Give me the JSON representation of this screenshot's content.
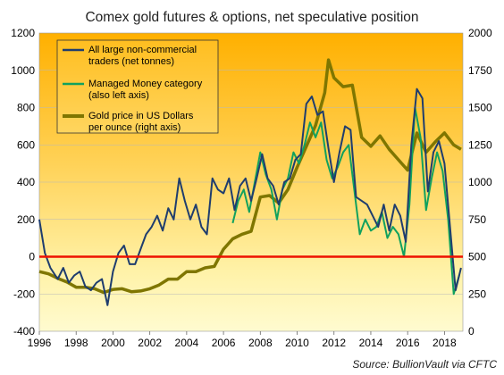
{
  "chart_data": {
    "type": "line",
    "title": "Comex gold futures & options, net speculative position",
    "source": "Source: BullionVault via CFTC",
    "x_axis": {
      "range": [
        1996,
        2019
      ],
      "ticks": [
        "1996",
        "1998",
        "2000",
        "2002",
        "2004",
        "2006",
        "2008",
        "2010",
        "2012",
        "2014",
        "2016",
        "2018"
      ]
    },
    "y_left": {
      "range": [
        -400,
        1200
      ],
      "ticks": [
        "-400",
        "-200",
        "0",
        "200",
        "400",
        "600",
        "800",
        "1000",
        "1200"
      ],
      "unit": "net tonnes"
    },
    "y_right": {
      "range": [
        0,
        2000
      ],
      "ticks": [
        "0",
        "250",
        "500",
        "750",
        "1000",
        "1250",
        "1500",
        "1750",
        "2000"
      ],
      "unit": "US Dollars per ounce"
    },
    "reference_line": {
      "y": 0,
      "axis": "left",
      "color": "#ee1100"
    },
    "grid": {
      "horizontal": true,
      "vertical": false
    },
    "legend_position": "top-left",
    "series": [
      {
        "name": "All large non-commercial traders (net tonnes)",
        "legend_lines": [
          "All large non-commercial",
          "traders (net tonnes)"
        ],
        "axis": "left",
        "color": "#1f3d6e",
        "x": [
          1996.0,
          1996.3,
          1996.6,
          1997.0,
          1997.3,
          1997.6,
          1997.9,
          1998.2,
          1998.5,
          1998.8,
          1999.1,
          1999.4,
          1999.7,
          2000.0,
          2000.3,
          2000.6,
          2000.9,
          2001.2,
          2001.5,
          2001.8,
          2002.1,
          2002.4,
          2002.7,
          2003.0,
          2003.3,
          2003.6,
          2003.9,
          2004.2,
          2004.5,
          2004.8,
          2005.1,
          2005.4,
          2005.7,
          2006.0,
          2006.3,
          2006.6,
          2006.9,
          2007.2,
          2007.5,
          2007.8,
          2008.1,
          2008.4,
          2008.7,
          2009.0,
          2009.3,
          2009.6,
          2009.9,
          2010.2,
          2010.5,
          2010.8,
          2011.1,
          2011.4,
          2011.7,
          2012.0,
          2012.3,
          2012.6,
          2012.9,
          2013.2,
          2013.5,
          2013.8,
          2014.1,
          2014.4,
          2014.7,
          2015.0,
          2015.3,
          2015.6,
          2015.9,
          2016.2,
          2016.5,
          2016.8,
          2017.1,
          2017.4,
          2017.7,
          2018.0,
          2018.3,
          2018.6,
          2018.9
        ],
        "values": [
          200,
          20,
          -60,
          -120,
          -60,
          -140,
          -100,
          -80,
          -160,
          -180,
          -140,
          -120,
          -260,
          -80,
          20,
          60,
          -40,
          -40,
          40,
          120,
          160,
          220,
          140,
          260,
          200,
          420,
          300,
          200,
          280,
          160,
          120,
          420,
          360,
          340,
          420,
          250,
          380,
          420,
          300,
          420,
          550,
          420,
          380,
          280,
          400,
          420,
          520,
          550,
          820,
          860,
          760,
          780,
          580,
          400,
          560,
          700,
          680,
          320,
          300,
          280,
          220,
          160,
          280,
          140,
          280,
          220,
          80,
          600,
          900,
          850,
          350,
          560,
          620,
          500,
          160,
          -180,
          -60
        ]
      },
      {
        "name": "Managed Money category (also left axis)",
        "legend_lines": [
          "Managed Money category",
          "(also left axis)"
        ],
        "axis": "left",
        "color": "#11a15e",
        "x": [
          2006.5,
          2006.8,
          2007.1,
          2007.4,
          2007.7,
          2008.0,
          2008.3,
          2008.6,
          2008.9,
          2009.2,
          2009.5,
          2009.8,
          2010.1,
          2010.4,
          2010.7,
          2011.0,
          2011.3,
          2011.6,
          2011.9,
          2012.2,
          2012.5,
          2012.8,
          2013.1,
          2013.4,
          2013.7,
          2014.0,
          2014.3,
          2014.6,
          2014.9,
          2015.2,
          2015.5,
          2015.8,
          2016.1,
          2016.4,
          2016.7,
          2017.0,
          2017.3,
          2017.6,
          2017.9,
          2018.2,
          2018.5,
          2018.8
        ],
        "values": [
          180,
          300,
          360,
          240,
          400,
          560,
          440,
          360,
          200,
          360,
          420,
          560,
          500,
          600,
          720,
          640,
          720,
          520,
          420,
          480,
          560,
          600,
          360,
          120,
          200,
          140,
          160,
          240,
          100,
          160,
          120,
          0,
          280,
          800,
          640,
          250,
          420,
          560,
          460,
          200,
          -200,
          -100
        ]
      },
      {
        "name": "Gold price in US Dollars per ounce (right axis)",
        "legend_lines": [
          "Gold price in US Dollars",
          "per ounce (right axis)"
        ],
        "axis": "right",
        "color": "#7f7600",
        "x": [
          1996.0,
          1996.5,
          1997.0,
          1997.5,
          1998.0,
          1998.5,
          1999.0,
          1999.5,
          2000.0,
          2000.5,
          2001.0,
          2001.5,
          2002.0,
          2002.5,
          2003.0,
          2003.5,
          2004.0,
          2004.5,
          2005.0,
          2005.5,
          2006.0,
          2006.5,
          2007.0,
          2007.5,
          2008.0,
          2008.5,
          2009.0,
          2009.5,
          2010.0,
          2010.5,
          2011.0,
          2011.5,
          2011.7,
          2012.0,
          2012.5,
          2013.0,
          2013.5,
          2014.0,
          2014.5,
          2015.0,
          2015.5,
          2016.0,
          2016.5,
          2017.0,
          2017.5,
          2018.0,
          2018.5,
          2018.9
        ],
        "values": [
          400,
          385,
          355,
          330,
          295,
          295,
          285,
          260,
          280,
          285,
          265,
          270,
          285,
          310,
          350,
          350,
          400,
          400,
          425,
          435,
          550,
          620,
          650,
          670,
          900,
          910,
          860,
          950,
          1100,
          1240,
          1380,
          1600,
          1820,
          1700,
          1640,
          1650,
          1300,
          1240,
          1310,
          1220,
          1150,
          1080,
          1330,
          1200,
          1270,
          1330,
          1250,
          1220
        ]
      }
    ]
  }
}
